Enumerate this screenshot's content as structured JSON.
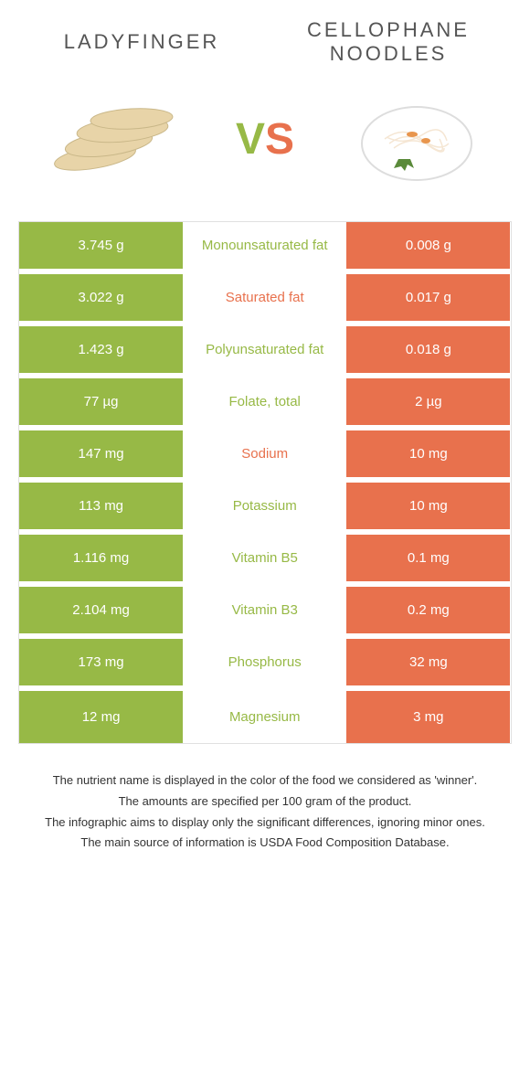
{
  "header": {
    "left_title": "LADYFINGER",
    "right_title": "CELLOPHANE NOODLES",
    "vs_v": "V",
    "vs_s": "S"
  },
  "colors": {
    "left_color": "#97b946",
    "right_color": "#e8714d",
    "text_color": "#555555",
    "footer_color": "#333333",
    "border_color": "#e0e0e0"
  },
  "table": {
    "rows": [
      {
        "left": "3.745 g",
        "label": "Monounsaturated fat",
        "right": "0.008 g",
        "winner": "left"
      },
      {
        "left": "3.022 g",
        "label": "Saturated fat",
        "right": "0.017 g",
        "winner": "right"
      },
      {
        "left": "1.423 g",
        "label": "Polyunsaturated fat",
        "right": "0.018 g",
        "winner": "left"
      },
      {
        "left": "77 µg",
        "label": "Folate, total",
        "right": "2 µg",
        "winner": "left"
      },
      {
        "left": "147 mg",
        "label": "Sodium",
        "right": "10 mg",
        "winner": "right"
      },
      {
        "left": "113 mg",
        "label": "Potassium",
        "right": "10 mg",
        "winner": "left"
      },
      {
        "left": "1.116 mg",
        "label": "Vitamin B5",
        "right": "0.1 mg",
        "winner": "left"
      },
      {
        "left": "2.104 mg",
        "label": "Vitamin B3",
        "right": "0.2 mg",
        "winner": "left"
      },
      {
        "left": "173 mg",
        "label": "Phosphorus",
        "right": "32 mg",
        "winner": "left"
      },
      {
        "left": "12 mg",
        "label": "Magnesium",
        "right": "3 mg",
        "winner": "left"
      }
    ]
  },
  "footer": {
    "line1": "The nutrient name is displayed in the color of the food we considered as 'winner'.",
    "line2": "The amounts are specified per 100 gram of the product.",
    "line3": "The infographic aims to display only the significant differences, ignoring minor ones.",
    "line4": "The main source of information is USDA Food Composition Database."
  }
}
